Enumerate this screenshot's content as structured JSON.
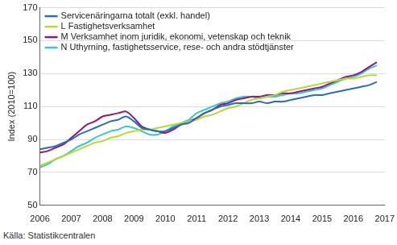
{
  "chart_data": {
    "type": "line",
    "y_label": "Index (2010=100)",
    "source": "Källa: Statistikcentralen",
    "xlim": [
      2006,
      2017
    ],
    "xticks": [
      2006,
      2007,
      2008,
      2009,
      2010,
      2011,
      2012,
      2013,
      2014,
      2015,
      2016,
      2017
    ],
    "ylim": [
      50,
      170
    ],
    "yticks": [
      50,
      70,
      90,
      110,
      130,
      150,
      170
    ],
    "grid": true,
    "legend": "top-left",
    "x": [
      2006.0,
      2006.25,
      2006.5,
      2006.75,
      2007.0,
      2007.25,
      2007.5,
      2007.75,
      2008.0,
      2008.25,
      2008.5,
      2008.75,
      2009.0,
      2009.25,
      2009.5,
      2009.75,
      2010.0,
      2010.25,
      2010.5,
      2010.75,
      2011.0,
      2011.25,
      2011.5,
      2011.75,
      2012.0,
      2012.25,
      2012.5,
      2012.75,
      2013.0,
      2013.25,
      2013.5,
      2013.75,
      2014.0,
      2014.25,
      2014.5,
      2014.75,
      2015.0,
      2015.25,
      2015.5,
      2015.75,
      2016.0,
      2016.25,
      2016.5,
      2016.75
    ],
    "series": [
      {
        "name": "Servicenäringarna totalt (exkl. handel)",
        "color": "#2a6db5",
        "values": [
          84,
          85,
          86,
          88,
          90,
          93,
          95,
          97,
          99,
          101,
          102,
          104,
          101,
          97,
          96,
          95,
          95,
          97,
          99,
          100,
          103,
          106,
          108,
          110,
          111,
          112,
          112,
          112,
          113,
          112,
          113,
          113,
          114,
          115,
          116,
          117,
          117,
          118,
          119,
          120,
          121,
          122,
          123,
          125
        ]
      },
      {
        "name": "L Fastighetsverksamhet",
        "color": "#b9d73a",
        "values": [
          74,
          76,
          78,
          80,
          82,
          84,
          86,
          88,
          89,
          91,
          92,
          94,
          95,
          96,
          96,
          97,
          98,
          99,
          100,
          101,
          102,
          104,
          105,
          107,
          109,
          110,
          112,
          114,
          115,
          116,
          117,
          119,
          120,
          121,
          122,
          123,
          124,
          125,
          126,
          127,
          127,
          128,
          129,
          129
        ]
      },
      {
        "name": "M Verksamhet inom juridik, ekonomi, vetenskap och teknik",
        "color": "#8c1a7c",
        "values": [
          82,
          83,
          85,
          87,
          91,
          95,
          99,
          101,
          104,
          105,
          106,
          107,
          103,
          98,
          96,
          95,
          94,
          96,
          99,
          101,
          103,
          106,
          108,
          111,
          112,
          114,
          115,
          116,
          116,
          117,
          117,
          118,
          118,
          119,
          120,
          121,
          122,
          124,
          126,
          128,
          129,
          131,
          134,
          137
        ]
      },
      {
        "name": "N Uthyrning, fastighetsservice, rese- och andra stödtjänster",
        "color": "#3ec6c8",
        "values": [
          73,
          75,
          78,
          80,
          83,
          86,
          88,
          91,
          93,
          95,
          96,
          98,
          97,
          95,
          93,
          93,
          95,
          98,
          100,
          102,
          106,
          108,
          110,
          112,
          113,
          115,
          116,
          116,
          115,
          116,
          116,
          117,
          118,
          118,
          119,
          120,
          121,
          123,
          125,
          127,
          128,
          130,
          133,
          135
        ]
      }
    ]
  }
}
